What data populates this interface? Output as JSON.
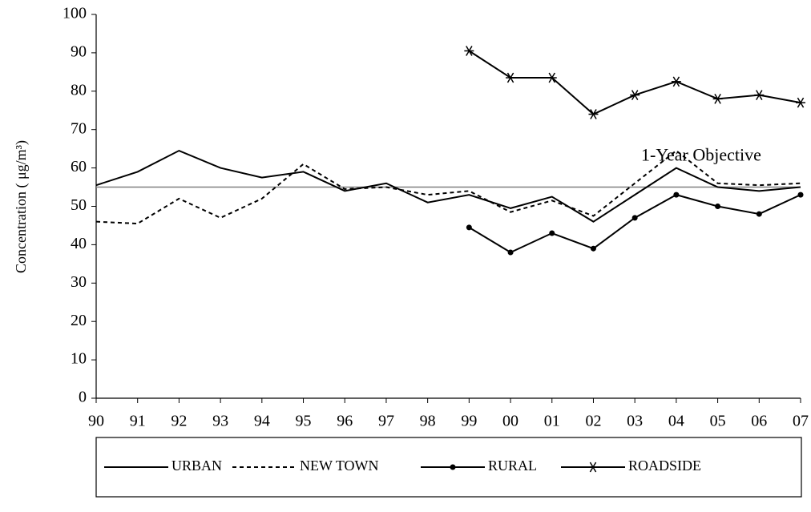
{
  "chart_data": {
    "type": "line",
    "y_label": "Concentration ( μg/m³)",
    "categories": [
      "90",
      "91",
      "92",
      "93",
      "94",
      "95",
      "96",
      "97",
      "98",
      "99",
      "00",
      "01",
      "02",
      "03",
      "04",
      "05",
      "06",
      "07"
    ],
    "series": [
      {
        "name": "URBAN",
        "color": "#000000",
        "dashed": false,
        "marker": "none",
        "values": [
          55.5,
          59,
          64.5,
          60,
          57.5,
          59,
          54,
          56,
          51,
          53,
          49.5,
          52.5,
          46,
          53,
          60,
          55,
          54,
          55
        ]
      },
      {
        "name": "NEW TOWN",
        "color": "#000000",
        "dashed": true,
        "marker": "none",
        "values": [
          46,
          45.5,
          52,
          47,
          52,
          61,
          54.5,
          55,
          53,
          54,
          48.5,
          51.5,
          47.5,
          56,
          64.5,
          56,
          55.5,
          56
        ]
      },
      {
        "name": "RURAL",
        "color": "#000000",
        "dashed": false,
        "marker": "circle",
        "values": [
          null,
          null,
          null,
          null,
          null,
          null,
          null,
          null,
          null,
          44.5,
          38,
          43,
          39,
          47,
          53,
          50,
          48,
          53
        ]
      },
      {
        "name": "ROADSIDE",
        "color": "#000000",
        "dashed": false,
        "marker": "asterisk",
        "values": [
          null,
          null,
          null,
          null,
          null,
          null,
          null,
          null,
          null,
          90.5,
          83.5,
          83.5,
          74,
          79,
          82.5,
          78,
          79,
          77
        ]
      }
    ],
    "reference_line": {
      "value": 55,
      "label": "1-Year Objective",
      "color": "#808080"
    },
    "ylim": [
      0,
      100
    ],
    "yticks": [
      0,
      10,
      20,
      30,
      40,
      50,
      60,
      70,
      80,
      90,
      100
    ],
    "legend": "bottom"
  }
}
